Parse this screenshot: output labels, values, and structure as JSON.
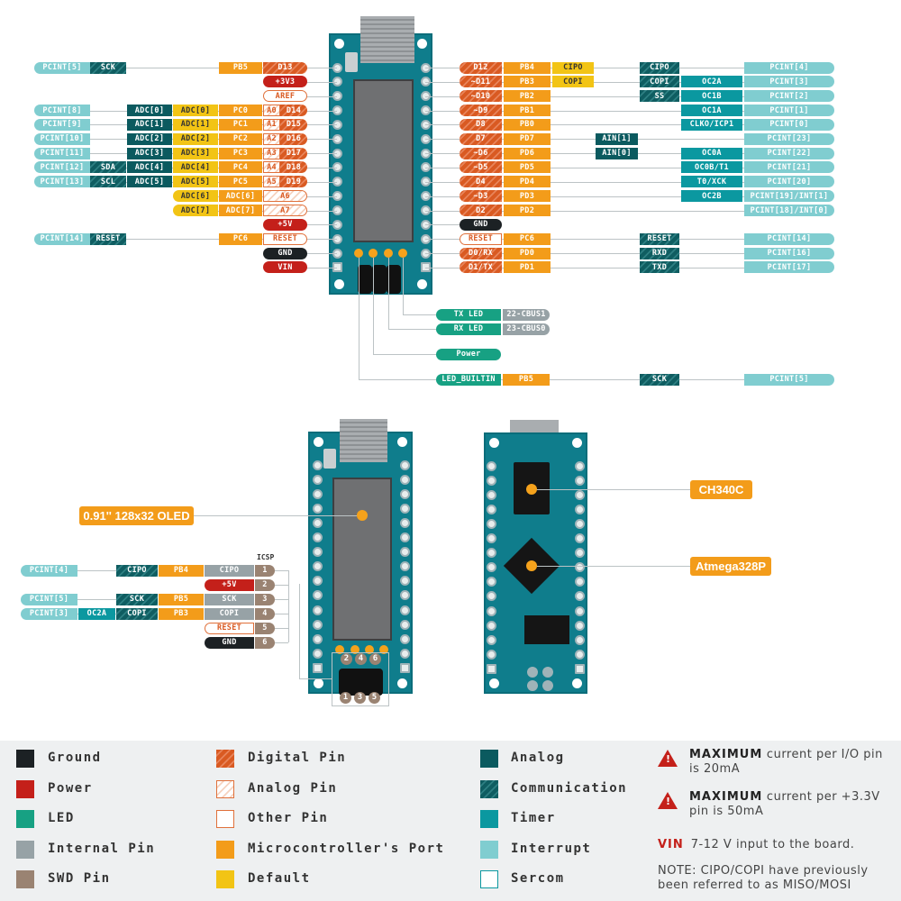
{
  "top_left": {
    "rows": [
      {
        "pcint": "PCINT[5]",
        "comm": "SCK",
        "port": "PB5",
        "pin": "D13",
        "pin_kind": "digital"
      },
      {
        "pin": "+3V3",
        "pin_kind": "power"
      },
      {
        "pin": "AREF",
        "pin_kind": "other"
      },
      {
        "pcint": "PCINT[8]",
        "analog": "ADC[0]",
        "default": "ADC[0]",
        "port": "PC0",
        "pin_alt": "A0",
        "pin": "D14",
        "pin_kind": "digital"
      },
      {
        "pcint": "PCINT[9]",
        "analog": "ADC[1]",
        "default": "ADC[1]",
        "port": "PC1",
        "pin_alt": "A1",
        "pin": "D15",
        "pin_kind": "digital"
      },
      {
        "pcint": "PCINT[10]",
        "analog": "ADC[2]",
        "default": "ADC[2]",
        "port": "PC2",
        "pin_alt": "A2",
        "pin": "D16",
        "pin_kind": "digital"
      },
      {
        "pcint": "PCINT[11]",
        "analog": "ADC[3]",
        "default": "ADC[3]",
        "port": "PC3",
        "pin_alt": "A3",
        "pin": "D17",
        "pin_kind": "digital"
      },
      {
        "pcint": "PCINT[12]",
        "comm": "SDA",
        "analog": "ADC[4]",
        "default": "ADC[4]",
        "port": "PC4",
        "pin_alt": "A4",
        "pin": "D18",
        "pin_kind": "digital"
      },
      {
        "pcint": "PCINT[13]",
        "comm": "SCL",
        "analog": "ADC[5]",
        "default": "ADC[5]",
        "port": "PC5",
        "pin_alt": "A5",
        "pin": "D19",
        "pin_kind": "digital"
      },
      {
        "default": "ADC[6]",
        "port": "ADC[6]",
        "pin": "A6",
        "pin_kind": "analogpin"
      },
      {
        "default": "ADC[7]",
        "port": "ADC[7]",
        "pin": "A7",
        "pin_kind": "analogpin"
      },
      {
        "pin": "+5V",
        "pin_kind": "power"
      },
      {
        "pcint": "PCINT[14]",
        "comm": "RESET",
        "port": "PC6",
        "pin": "RESET",
        "pin_kind": "other"
      },
      {
        "pin": "GND",
        "pin_kind": "ground"
      },
      {
        "pin": "VIN",
        "pin_kind": "power"
      }
    ]
  },
  "top_right": {
    "rows": [
      {
        "pin": "D12",
        "pin_kind": "digital",
        "port": "PB4",
        "default": "CIPO",
        "comm": "CIPO",
        "pcint": "PCINT[4]"
      },
      {
        "pin": "~D11",
        "pin_kind": "digital",
        "port": "PB3",
        "default": "COPI",
        "comm": "COPI",
        "timer": "OC2A",
        "pcint": "PCINT[3]"
      },
      {
        "pin": "~D10",
        "pin_kind": "digital",
        "port": "PB2",
        "comm": "SS",
        "timer": "OC1B",
        "pcint": "PCINT[2]"
      },
      {
        "pin": "~D9",
        "pin_kind": "digital",
        "port": "PB1",
        "timer": "OC1A",
        "pcint": "PCINT[1]"
      },
      {
        "pin": "D8",
        "pin_kind": "digital",
        "port": "PB0",
        "timer": "CLKO/ICP1",
        "pcint": "PCINT[0]"
      },
      {
        "pin": "D7",
        "pin_kind": "digital",
        "port": "PD7",
        "analog": "AIN[1]",
        "pcint": "PCINT[23]"
      },
      {
        "pin": "~D6",
        "pin_kind": "digital",
        "port": "PD6",
        "analog": "AIN[0]",
        "timer": "OC0A",
        "pcint": "PCINT[22]"
      },
      {
        "pin": "~D5",
        "pin_kind": "digital",
        "port": "PD5",
        "timer": "OC0B/T1",
        "pcint": "PCINT[21]"
      },
      {
        "pin": "D4",
        "pin_kind": "digital",
        "port": "PD4",
        "timer": "T0/XCK",
        "pcint": "PCINT[20]"
      },
      {
        "pin": "~D3",
        "pin_kind": "digital",
        "port": "PD3",
        "timer": "OC2B",
        "pcint": "PCINT[19]/INT[1]"
      },
      {
        "pin": "D2",
        "pin_kind": "digital",
        "port": "PD2",
        "pcint": "PCINT[18]/INT[0]"
      },
      {
        "pin": "GND",
        "pin_kind": "ground"
      },
      {
        "pin": "RESET",
        "pin_kind": "other",
        "port": "PC6",
        "comm": "RESET",
        "pcint": "PCINT[14]"
      },
      {
        "pin": "D0/RX",
        "pin_kind": "digital",
        "port": "PD0",
        "comm": "RXD",
        "pcint": "PCINT[16]"
      },
      {
        "pin": "D1/TX",
        "pin_kind": "digital",
        "port": "PD1",
        "comm": "TXD",
        "pcint": "PCINT[17]"
      }
    ]
  },
  "leds": {
    "tx": "TX LED",
    "tx_internal": "22-CBUS1",
    "rx": "RX LED",
    "rx_internal": "23-CBUS0",
    "power": "Power",
    "builtin": "LED_BUILTIN",
    "builtin_port": "PB5",
    "builtin_comm": "SCK",
    "builtin_pcint": "PCINT[5]"
  },
  "oled_label": "0.91'' 128x32 OLED",
  "icsp": {
    "title": "ICSP",
    "rows": [
      {
        "pcint": "PCINT[4]",
        "comm": "CIPO",
        "port": "PB4",
        "internal": "CIPO",
        "num": "1"
      },
      {
        "power": "+5V",
        "num": "2"
      },
      {
        "pcint": "PCINT[5]",
        "comm": "SCK",
        "port": "PB5",
        "internal": "SCK",
        "num": "3"
      },
      {
        "pcint": "PCINT[3]",
        "timer": "OC2A",
        "comm": "COPI",
        "port": "PB3",
        "internal": "COPI",
        "num": "4"
      },
      {
        "other": "RESET",
        "num": "5"
      },
      {
        "ground": "GND",
        "num": "6"
      }
    ],
    "header_top": [
      "2",
      "4",
      "6"
    ],
    "header_bottom": [
      "1",
      "3",
      "5"
    ]
  },
  "chips": {
    "usb": "CH340C",
    "mcu": "Atmega328P"
  },
  "legend": {
    "items": [
      {
        "label": "Ground",
        "kind": "ground"
      },
      {
        "label": "Power",
        "kind": "power"
      },
      {
        "label": "LED",
        "kind": "led"
      },
      {
        "label": "Internal Pin",
        "kind": "internal"
      },
      {
        "label": "SWD Pin",
        "kind": "swd"
      },
      {
        "label": "Digital Pin",
        "kind": "digital"
      },
      {
        "label": "Analog Pin",
        "kind": "analogpin"
      },
      {
        "label": "Other Pin",
        "kind": "other"
      },
      {
        "label": "Microcontroller's Port",
        "kind": "port"
      },
      {
        "label": "Default",
        "kind": "default"
      },
      {
        "label": "Analog",
        "kind": "analog"
      },
      {
        "label": "Communication",
        "kind": "comm"
      },
      {
        "label": "Timer",
        "kind": "timer"
      },
      {
        "label": "Interrupt",
        "kind": "pcint"
      },
      {
        "label": "Sercom",
        "kind": "sercom"
      }
    ],
    "notes": {
      "max1_bold": "MAXIMUM",
      "max1_rest": " current per I/O pin is 20mA",
      "max2_bold": "MAXIMUM",
      "max2_rest": " current per +3.3V pin is 50mA",
      "vin_bold": "VIN",
      "vin_rest": "7-12 V input to the board.",
      "note": "NOTE: CIPO/COPI have previously been referred to as MISO/MOSI"
    }
  },
  "colors": {
    "board": "#0f7d8c",
    "digital": "#d95a22",
    "power": "#c4201a",
    "ground": "#1c2124",
    "led": "#17a183",
    "port": "#f39c1a",
    "default": "#f2c415",
    "analog": "#0b5a5f",
    "timer": "#0b98a0",
    "interrupt": "#80cdd0",
    "internal": "#97a2a6",
    "swd": "#9a8372"
  }
}
